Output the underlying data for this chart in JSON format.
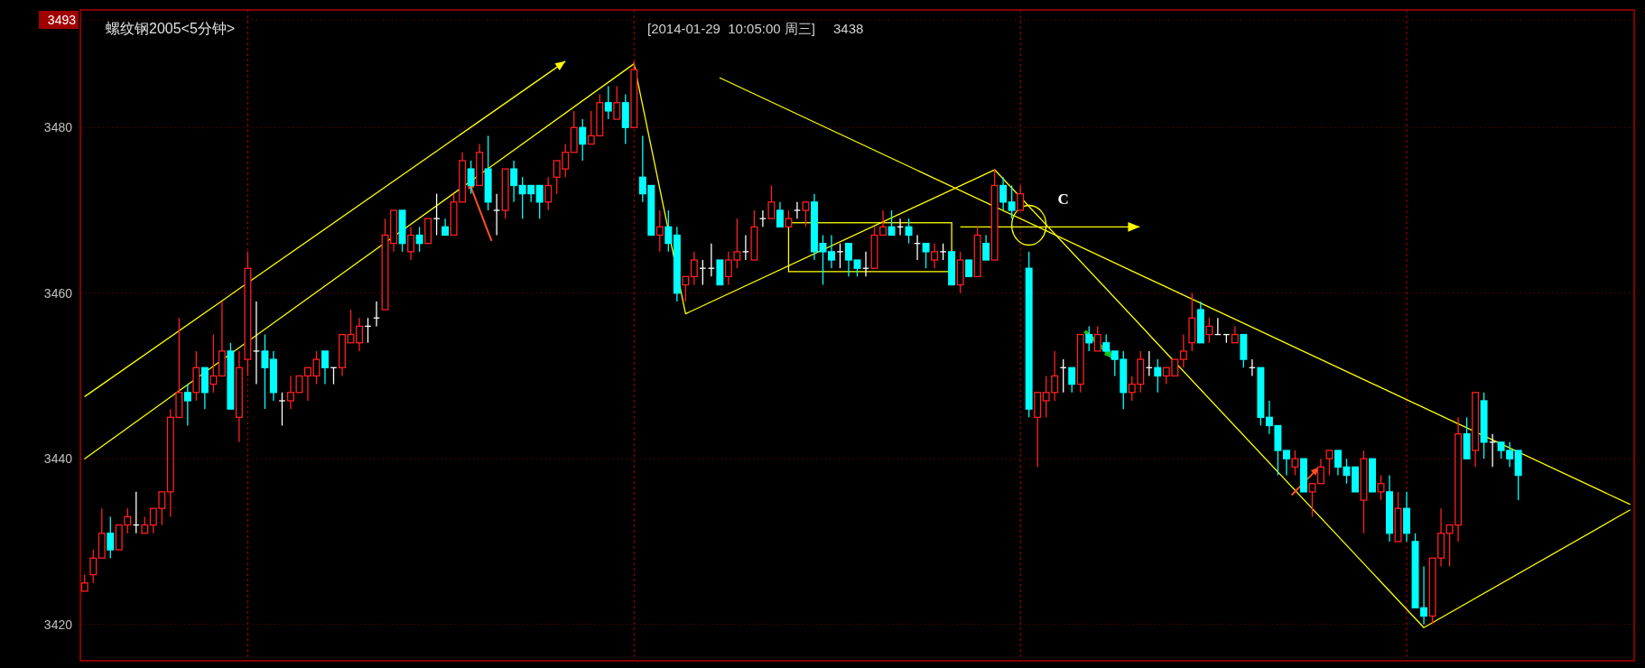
{
  "chart_data": {
    "type": "candlestick",
    "title": "螺纹钢2005<5分钟>",
    "subtitle": "[2014-01-29  10:05:00 周三]",
    "annotations": [
      "3438",
      "C"
    ],
    "categories": [
      null,
      null,
      null,
      null,
      null,
      null,
      null,
      null,
      null,
      null,
      null,
      null,
      null,
      null,
      null,
      null,
      null,
      null,
      null,
      null,
      null,
      null,
      null,
      null,
      null,
      null,
      null,
      null,
      null,
      null,
      null,
      null,
      null,
      null,
      null,
      null,
      null,
      null,
      null,
      null,
      null,
      null,
      null,
      null,
      null,
      null,
      null,
      null,
      null,
      null,
      null,
      null,
      null,
      null,
      null,
      null,
      null,
      null,
      null,
      null,
      null,
      null,
      null,
      null,
      null,
      null,
      null,
      null,
      null,
      null,
      null,
      null,
      null,
      null,
      null,
      null,
      null,
      null,
      null,
      null,
      null,
      null,
      null,
      null,
      null,
      null,
      null,
      null,
      null,
      null,
      null,
      null,
      null,
      null,
      null,
      null,
      null,
      null,
      null,
      null,
      null,
      null,
      null,
      null,
      null,
      null,
      null,
      null,
      null,
      null,
      null,
      null,
      null,
      null,
      null,
      null,
      null,
      null,
      null,
      null,
      null,
      null,
      null,
      null,
      null,
      null,
      null,
      null,
      null,
      null,
      null,
      null,
      null,
      null,
      null,
      null,
      null,
      null,
      null,
      null,
      null,
      null,
      null,
      null,
      null,
      null,
      null,
      null,
      null,
      null,
      null,
      null,
      null,
      null,
      null,
      null,
      null,
      null,
      null,
      null,
      null,
      null,
      null,
      null,
      null,
      null,
      null,
      null,
      null,
      null,
      null,
      null,
      null,
      null,
      null,
      null,
      null,
      null,
      null,
      null,
      null
    ],
    "ohlc": [
      [
        3424,
        3426,
        3424,
        3425
      ],
      [
        3426,
        3429,
        3425,
        3428
      ],
      [
        3428,
        3434,
        3428,
        3431
      ],
      [
        3431,
        3433,
        3428,
        3429
      ],
      [
        3429,
        3432,
        3429,
        3432
      ],
      [
        3432,
        3434,
        3431,
        3433
      ],
      [
        3432,
        3436,
        3431,
        3432
      ],
      [
        3431,
        3433,
        3431,
        3432
      ],
      [
        3432,
        3434,
        3431,
        3434
      ],
      [
        3434,
        3436,
        3432,
        3436
      ],
      [
        3436,
        3446,
        3433,
        3445
      ],
      [
        3445,
        3457,
        3445,
        3448
      ],
      [
        3448,
        3449,
        3444,
        3447
      ],
      [
        3448,
        3453,
        3447,
        3451
      ],
      [
        3451,
        3451,
        3446,
        3448
      ],
      [
        3449,
        3455,
        3448,
        3450
      ],
      [
        3450,
        3459,
        3450,
        3453
      ],
      [
        3453,
        3454,
        3446,
        3446
      ],
      [
        3445,
        3453,
        3442,
        3451
      ],
      [
        3452,
        3465,
        3450,
        3463
      ],
      [
        3453,
        3459,
        3449,
        3453
      ],
      [
        3453,
        3455,
        3446,
        3451
      ],
      [
        3452,
        3453,
        3447,
        3448
      ],
      [
        3447,
        3448,
        3444,
        3447
      ],
      [
        3447,
        3450,
        3446,
        3448
      ],
      [
        3448,
        3450,
        3448,
        3450
      ],
      [
        3450,
        3451,
        3447,
        3451
      ],
      [
        3450,
        3453,
        3449,
        3452
      ],
      [
        3453,
        3453,
        3449,
        3451
      ],
      [
        3451,
        3451,
        3449,
        3451
      ],
      [
        3451,
        3455,
        3450,
        3455
      ],
      [
        3454,
        3458,
        3454,
        3455
      ],
      [
        3454,
        3457,
        3453,
        3456
      ],
      [
        3456,
        3457,
        3454,
        3456
      ],
      [
        3457,
        3459,
        3456,
        3457
      ],
      [
        3458,
        3469,
        3458,
        3467
      ],
      [
        3466,
        3470,
        3465,
        3470
      ],
      [
        3470,
        3470,
        3465,
        3466
      ],
      [
        3465,
        3468,
        3464,
        3467
      ],
      [
        3467,
        3468,
        3465,
        3466
      ],
      [
        3466,
        3469,
        3466,
        3469
      ],
      [
        3469,
        3472,
        3467,
        3469
      ],
      [
        3468,
        3469,
        3467,
        3467
      ],
      [
        3467,
        3472,
        3467,
        3471
      ],
      [
        3471,
        3477,
        3471,
        3476
      ],
      [
        3475,
        3476,
        3472,
        3473
      ],
      [
        3473,
        3478,
        3473,
        3477
      ],
      [
        3475,
        3479,
        3470,
        3471
      ],
      [
        3470,
        3472,
        3467,
        3470
      ],
      [
        3470,
        3475,
        3469,
        3475
      ],
      [
        3475,
        3476,
        3471,
        3473
      ],
      [
        3473,
        3474,
        3469,
        3472
      ],
      [
        3473,
        3473,
        3471,
        3472
      ],
      [
        3473,
        3473,
        3469,
        3471
      ],
      [
        3471,
        3474,
        3470,
        3473
      ],
      [
        3474,
        3476,
        3472,
        3476
      ],
      [
        3475,
        3478,
        3474,
        3477
      ],
      [
        3477,
        3482,
        3477,
        3480
      ],
      [
        3480,
        3481,
        3476,
        3478
      ],
      [
        3478,
        3482,
        3478,
        3479
      ],
      [
        3479,
        3484,
        3479,
        3483
      ],
      [
        3483,
        3485,
        3481,
        3482
      ],
      [
        3481,
        3485,
        3481,
        3483
      ],
      [
        3483,
        3484,
        3478,
        3480
      ],
      [
        3480,
        3488,
        3480,
        3487
      ],
      [
        3474,
        3479,
        3471,
        3472
      ],
      [
        3473,
        3473,
        3467,
        3467
      ],
      [
        3467,
        3470,
        3465,
        3468
      ],
      [
        3468,
        3470,
        3465,
        3466
      ],
      [
        3467,
        3468,
        3459,
        3460
      ],
      [
        3461,
        3462,
        3459,
        3462
      ],
      [
        3462,
        3465,
        3461,
        3464
      ],
      [
        3463,
        3464,
        3461,
        3463
      ],
      [
        3463,
        3466,
        3462,
        3463
      ],
      [
        3464,
        3464,
        3461,
        3461
      ],
      [
        3462,
        3465,
        3461,
        3464
      ],
      [
        3464,
        3469,
        3463,
        3465
      ],
      [
        3465,
        3467,
        3464,
        3465
      ],
      [
        3464,
        3470,
        3464,
        3468
      ],
      [
        3469,
        3470,
        3468,
        3469
      ],
      [
        3469,
        3473,
        3469,
        3471
      ],
      [
        3470,
        3471,
        3468,
        3468
      ],
      [
        3468,
        3470,
        3468,
        3469
      ],
      [
        3470,
        3471,
        3469,
        3470
      ],
      [
        3470,
        3471,
        3468,
        3471
      ],
      [
        3471,
        3472,
        3464,
        3465
      ],
      [
        3466,
        3467,
        3461,
        3465
      ],
      [
        3465,
        3467,
        3463,
        3464
      ],
      [
        3465,
        3466,
        3463,
        3465
      ],
      [
        3466,
        3466,
        3462,
        3464
      ],
      [
        3464,
        3464,
        3462,
        3463
      ],
      [
        3463,
        3465,
        3462,
        3463
      ],
      [
        3463,
        3468,
        3463,
        3467
      ],
      [
        3467,
        3470,
        3467,
        3468
      ],
      [
        3468,
        3470,
        3467,
        3467
      ],
      [
        3468,
        3469,
        3467,
        3468
      ],
      [
        3468,
        3469,
        3466,
        3467
      ],
      [
        3466,
        3467,
        3464,
        3466
      ],
      [
        3466,
        3466,
        3463,
        3465
      ],
      [
        3464,
        3466,
        3463,
        3465
      ],
      [
        3465,
        3466,
        3464,
        3465
      ],
      [
        3465,
        3465,
        3461,
        3461
      ],
      [
        3461,
        3465,
        3460,
        3464
      ],
      [
        3464,
        3464,
        3462,
        3462
      ],
      [
        3462,
        3468,
        3462,
        3467
      ],
      [
        3466,
        3467,
        3464,
        3464
      ],
      [
        3464,
        3475,
        3464,
        3473
      ],
      [
        3473,
        3474,
        3470,
        3471
      ],
      [
        3471,
        3473,
        3469,
        3470
      ],
      [
        3470,
        3473,
        3470,
        3472
      ],
      [
        3463,
        3465,
        3445,
        3446
      ],
      [
        3445,
        3448,
        3439,
        3448
      ],
      [
        3447,
        3450,
        3445,
        3448
      ],
      [
        3448,
        3453,
        3447,
        3450
      ],
      [
        3451,
        3452,
        3448,
        3451
      ],
      [
        3451,
        3451,
        3448,
        3449
      ],
      [
        3449,
        3455,
        3448,
        3455
      ],
      [
        3455,
        3456,
        3453,
        3454
      ],
      [
        3453,
        3456,
        3453,
        3455
      ],
      [
        3454,
        3455,
        3453,
        3453
      ],
      [
        3453,
        3453,
        3450,
        3452
      ],
      [
        3452,
        3453,
        3446,
        3448
      ],
      [
        3448,
        3450,
        3447,
        3449
      ],
      [
        3449,
        3453,
        3448,
        3452
      ],
      [
        3451,
        3453,
        3450,
        3451
      ],
      [
        3451,
        3452,
        3448,
        3450
      ],
      [
        3450,
        3451,
        3449,
        3451
      ],
      [
        3450,
        3452,
        3450,
        3452
      ],
      [
        3452,
        3455,
        3451,
        3453
      ],
      [
        3454,
        3460,
        3453,
        3457
      ],
      [
        3458,
        3459,
        3454,
        3454
      ],
      [
        3455,
        3457,
        3454,
        3456
      ],
      [
        3455,
        3457,
        3455,
        3455
      ],
      [
        3455,
        3455,
        3454,
        3455
      ],
      [
        3454,
        3456,
        3454,
        3455
      ],
      [
        3455,
        3455,
        3451,
        3452
      ],
      [
        3451,
        3452,
        3450,
        3451
      ],
      [
        3451,
        3451,
        3444,
        3445
      ],
      [
        3445,
        3447,
        3443,
        3444
      ],
      [
        3444,
        3444,
        3438,
        3441
      ],
      [
        3441,
        3441,
        3438,
        3440
      ],
      [
        3439,
        3441,
        3438,
        3440
      ],
      [
        3440,
        3440,
        3436,
        3436
      ],
      [
        3436,
        3437,
        3433,
        3437
      ],
      [
        3437,
        3440,
        3437,
        3439
      ],
      [
        3440,
        3441,
        3438,
        3441
      ],
      [
        3441,
        3441,
        3438,
        3439
      ],
      [
        3439,
        3440,
        3437,
        3438
      ],
      [
        3439,
        3439,
        3436,
        3436
      ],
      [
        3435,
        3441,
        3431,
        3440
      ],
      [
        3440,
        3440,
        3436,
        3436
      ],
      [
        3436,
        3438,
        3435,
        3437
      ],
      [
        3436,
        3438,
        3430,
        3431
      ],
      [
        3430,
        3436,
        3430,
        3434
      ],
      [
        3434,
        3436,
        3430,
        3431
      ],
      [
        3430,
        3431,
        3422,
        3422
      ],
      [
        3422,
        3427,
        3420,
        3421
      ],
      [
        3421,
        3428,
        3420,
        3428
      ],
      [
        3428,
        3434,
        3427,
        3431
      ],
      [
        3431,
        3432,
        3427,
        3432
      ],
      [
        3432,
        3445,
        3430,
        3443
      ],
      [
        3443,
        3445,
        3440,
        3440
      ],
      [
        3441,
        3448,
        3439,
        3448
      ],
      [
        3447,
        3448,
        3440,
        3442
      ],
      [
        3442,
        3443,
        3439,
        3442
      ],
      [
        3442,
        3442,
        3440,
        3441
      ],
      [
        3441,
        3442,
        3439,
        3440
      ],
      [
        3441,
        3441,
        3435,
        3438
      ],
      null,
      null,
      null,
      null,
      null,
      null,
      null,
      null,
      null,
      null,
      null,
      null,
      null
    ],
    "series": [
      {
        "type": "line",
        "color": "#ffff00",
        "values": [
          3440.0,
          null,
          null,
          null,
          null,
          null,
          null,
          null,
          null,
          null,
          null,
          null,
          null,
          null,
          null,
          null,
          null,
          null,
          null,
          null,
          null,
          null,
          null,
          null,
          null,
          null,
          null,
          null,
          null,
          null,
          null,
          null,
          null,
          null,
          null,
          null,
          null,
          null,
          null,
          null,
          null,
          null,
          null,
          null,
          null,
          null,
          null,
          null,
          null,
          null,
          null,
          null,
          null,
          null,
          null,
          null,
          null,
          null,
          null,
          null,
          null,
          null,
          null,
          null,
          3487.7,
          null,
          null,
          null,
          null,
          null,
          3457.5,
          null,
          null,
          null,
          null,
          null,
          null,
          null,
          null,
          null,
          null,
          null,
          null,
          null,
          null,
          null,
          null,
          null,
          null,
          null,
          null,
          null,
          null,
          null,
          null,
          null,
          null,
          null,
          null,
          null,
          null,
          null,
          null,
          null,
          null,
          null,
          3474.9,
          null,
          null,
          null,
          null,
          null,
          null,
          null,
          null,
          null,
          null,
          null,
          null,
          null,
          null,
          null,
          null,
          null,
          null,
          null,
          null,
          null,
          null,
          null,
          null,
          null,
          null,
          null,
          null,
          null,
          null,
          null,
          null,
          null,
          null,
          null,
          null,
          null,
          null,
          null,
          null,
          null,
          null,
          null,
          null,
          null,
          null,
          null,
          null,
          null,
          3419.6,
          null,
          null,
          null,
          null,
          null,
          null,
          null,
          null,
          null,
          null,
          null,
          null,
          null,
          null,
          null,
          null,
          null,
          null,
          null,
          null,
          null,
          null,
          null,
          3433.8
        ]
      },
      {
        "type": "line",
        "color": "#ffff00",
        "values": [
          null,
          null,
          null,
          null,
          null,
          null,
          null,
          null,
          null,
          null,
          null,
          null,
          null,
          null,
          null,
          null,
          null,
          null,
          null,
          null,
          null,
          null,
          null,
          null,
          null,
          null,
          null,
          null,
          null,
          null,
          null,
          null,
          null,
          null,
          null,
          null,
          null,
          null,
          null,
          null,
          null,
          null,
          null,
          null,
          null,
          null,
          null,
          null,
          null,
          null,
          null,
          null,
          null,
          null,
          null,
          null,
          null,
          null,
          null,
          null,
          null,
          null,
          null,
          null,
          null,
          null,
          null,
          null,
          null,
          null,
          null,
          null,
          null,
          null,
          3486.0,
          null,
          null,
          null,
          null,
          null,
          null,
          null,
          null,
          null,
          null,
          null,
          null,
          null,
          null,
          null,
          null,
          null,
          null,
          null,
          null,
          null,
          null,
          null,
          null,
          null,
          null,
          null,
          null,
          null,
          null,
          null,
          null,
          null,
          null,
          null,
          null,
          null,
          null,
          null,
          null,
          null,
          null,
          null,
          null,
          null,
          null,
          null,
          null,
          null,
          null,
          null,
          null,
          null,
          null,
          null,
          null,
          null,
          null,
          null,
          null,
          null,
          null,
          null,
          null,
          null,
          null,
          null,
          null,
          null,
          null,
          null,
          null,
          null,
          null,
          null,
          null,
          null,
          null,
          null,
          null,
          null,
          null,
          null,
          null,
          null,
          null,
          null,
          null,
          null,
          null,
          null,
          null,
          null,
          null,
          null,
          null,
          null,
          null,
          null,
          null,
          null,
          null,
          null,
          null,
          null,
          3434.5
        ]
      }
    ],
    "ylim": [
      3415.6,
      3494.2
    ],
    "yticks": [
      3420,
      3440,
      3460,
      3480,
      3493
    ],
    "grid": "y",
    "tick_labels": "y"
  }
}
